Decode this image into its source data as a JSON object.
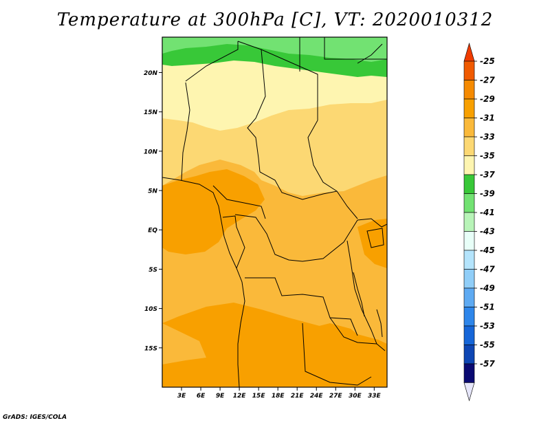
{
  "title": "Temperature at 300hPa [C], VT: 2020010312",
  "credit": "GrADS: IGES/COLA",
  "map": {
    "lat_labels": [
      "20N",
      "15N",
      "10N",
      "5N",
      "EQ",
      "5S",
      "10S",
      "15S"
    ],
    "lat_values": [
      20,
      15,
      10,
      5,
      0,
      -5,
      -10,
      -15
    ],
    "lon_labels": [
      "3E",
      "6E",
      "9E",
      "12E",
      "15E",
      "18E",
      "21E",
      "24E",
      "27E",
      "30E",
      "33E"
    ],
    "lon_values": [
      3,
      6,
      9,
      12,
      15,
      18,
      21,
      24,
      27,
      30,
      33
    ],
    "lon_range": [
      0,
      35
    ],
    "lat_range": [
      -20,
      24.5
    ]
  },
  "colorbar": {
    "labels": [
      "-25",
      "-27",
      "-29",
      "-31",
      "-33",
      "-35",
      "-37",
      "-39",
      "-41",
      "-43",
      "-45",
      "-47",
      "-49",
      "-51",
      "-53",
      "-55",
      "-57"
    ],
    "colors": [
      "#f05a00",
      "#f58a00",
      "#f8a000",
      "#fab93a",
      "#fcd873",
      "#fef5b0",
      "#38c838",
      "#72e272",
      "#b8f4b8",
      "#e8fff8",
      "#b4e4fc",
      "#90cef8",
      "#5eaaf2",
      "#2e86ea",
      "#1666d8",
      "#0e46b4",
      "#0a0a72"
    ],
    "top_arrow_color": "#f03c00",
    "bottom_arrow_color": "#e6e6fa"
  }
}
